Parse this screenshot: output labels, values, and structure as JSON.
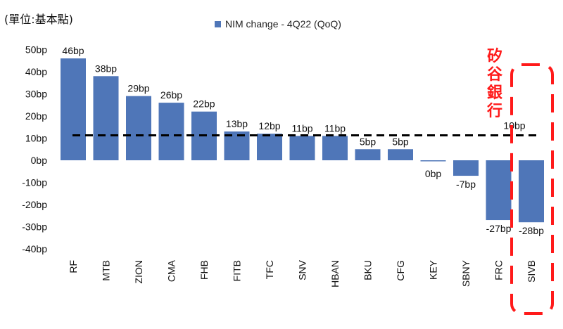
{
  "unit_label": "(單位:基本點)",
  "annotation": {
    "text_chars": [
      "矽",
      "谷",
      "銀",
      "行"
    ],
    "color": "#ff1a1a"
  },
  "colors": {
    "bar": "#4f76b8",
    "reference_line": "#000000",
    "highlight_box": "#ff1a1a"
  },
  "chart_data": {
    "type": "bar",
    "legend": "NIM change - 4Q22 (QoQ)",
    "legend_placement": "top-center",
    "categories": [
      "RF",
      "MTB",
      "ZION",
      "CMA",
      "FHB",
      "FITB",
      "TFC",
      "SNV",
      "HBAN",
      "BKU",
      "CFG",
      "KEY",
      "SBNY",
      "FRC",
      "SIVB"
    ],
    "series": [
      {
        "name": "NIM change - 4Q22 (QoQ)",
        "values": [
          46,
          38,
          29,
          26,
          22,
          13,
          12,
          11,
          11,
          5,
          5,
          0,
          -7,
          -27,
          -28
        ]
      }
    ],
    "data_labels": [
      "46bp",
      "38bp",
      "29bp",
      "26bp",
      "22bp",
      "13bp",
      "12bp",
      "11bp",
      "11bp",
      "5bp",
      "5bp",
      "0bp",
      "-7bp",
      "-27bp",
      "-28bp"
    ],
    "average_line": {
      "value": 10,
      "label": "10bp",
      "style": "dashed"
    },
    "highlighted_category": "SIVB",
    "yticks": [
      50,
      40,
      30,
      20,
      10,
      0,
      -10,
      -20,
      -30,
      -40
    ],
    "ytick_labels": [
      "50bp",
      "40bp",
      "30bp",
      "20bp",
      "10bp",
      "0bp",
      "-10bp",
      "-20bp",
      "-30bp",
      "-40bp"
    ],
    "ylim": [
      -40,
      50
    ],
    "xlabel": "",
    "ylabel": "",
    "grid": false
  }
}
